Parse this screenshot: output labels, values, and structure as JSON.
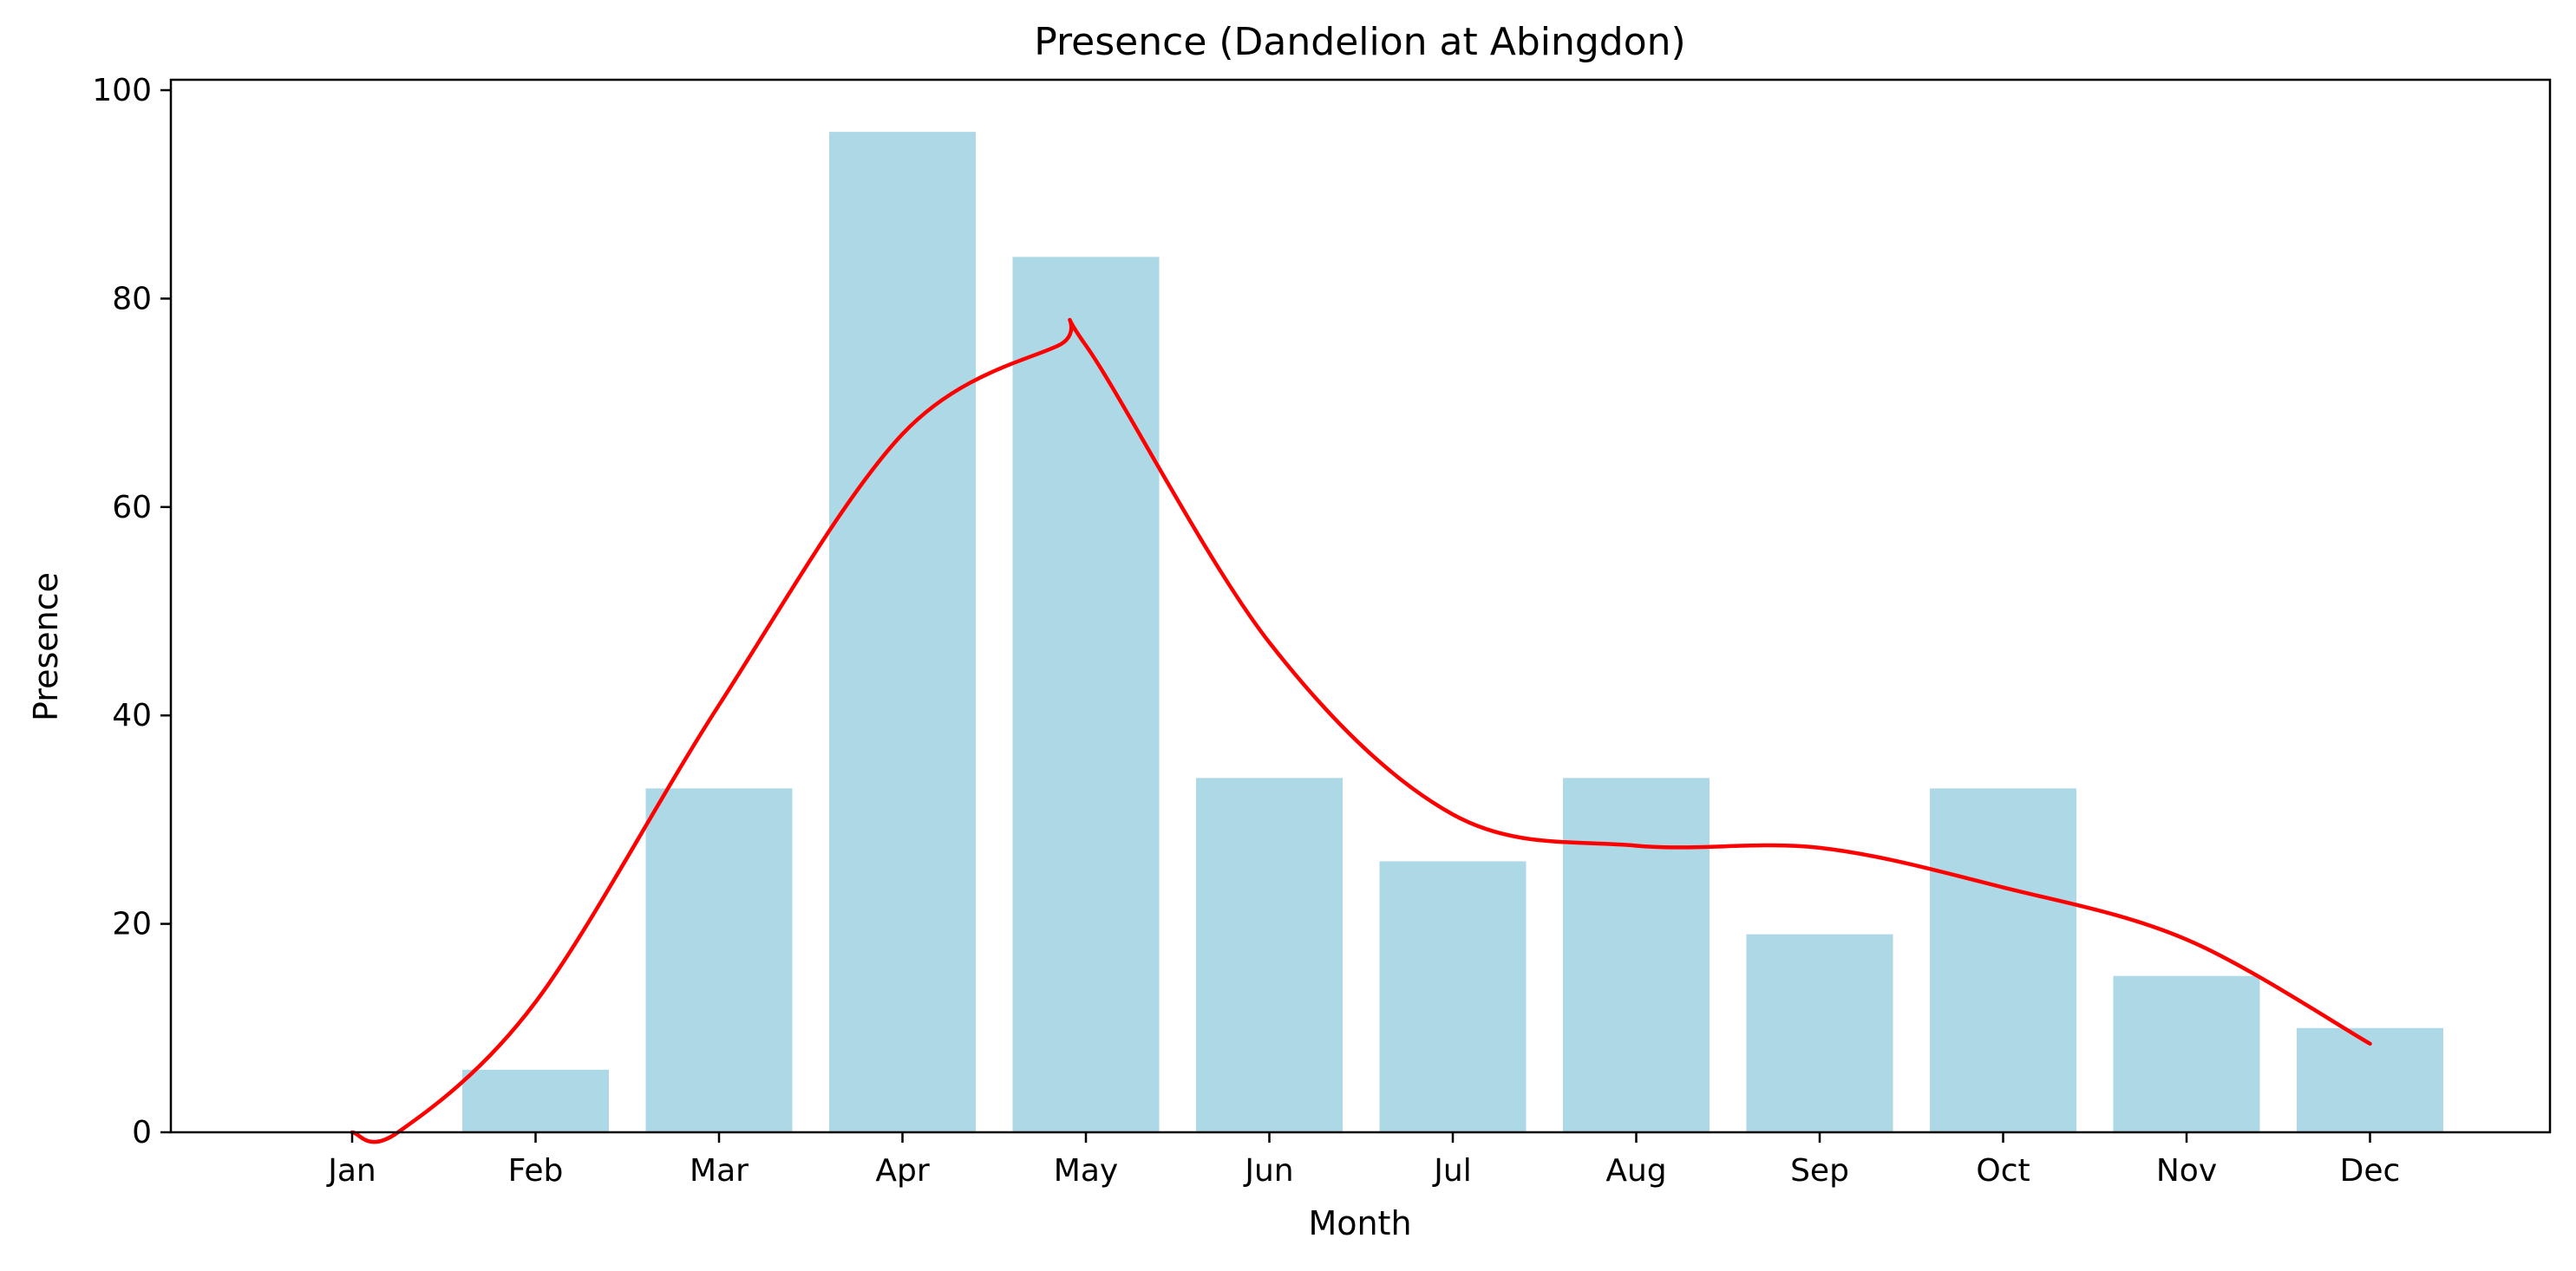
{
  "chart_data": {
    "type": "bar",
    "title": "Presence (Dandelion at Abingdon)",
    "xlabel": "Month",
    "ylabel": "Presence",
    "categories": [
      "Jan",
      "Feb",
      "Mar",
      "Apr",
      "May",
      "Jun",
      "Jul",
      "Aug",
      "Sep",
      "Oct",
      "Nov",
      "Dec"
    ],
    "values": [
      0,
      6,
      33,
      96,
      84,
      34,
      26,
      34,
      19,
      33,
      15,
      10
    ],
    "trend_line": {
      "x": [
        "Jan",
        "Jan",
        "Feb",
        "Mar",
        "Apr",
        "May",
        "May",
        "Jun",
        "Jul",
        "Aug",
        "Sep",
        "Oct",
        "Nov",
        "Dec"
      ],
      "x_offsets": [
        0,
        0.25,
        0,
        0,
        0,
        -0.15,
        0,
        0,
        0,
        0,
        0,
        0,
        0,
        0
      ],
      "y": [
        0,
        0,
        12.5,
        41,
        67,
        75.5,
        75.5,
        47,
        30.5,
        27.5,
        27.3,
        23.5,
        18.5,
        8.5
      ]
    },
    "ylim": [
      0,
      101
    ],
    "yticks": [
      0,
      20,
      40,
      60,
      80,
      100
    ],
    "grid": false,
    "colors": {
      "bar": "#add8e6",
      "line": "#ff0000",
      "axis": "#000000"
    }
  }
}
